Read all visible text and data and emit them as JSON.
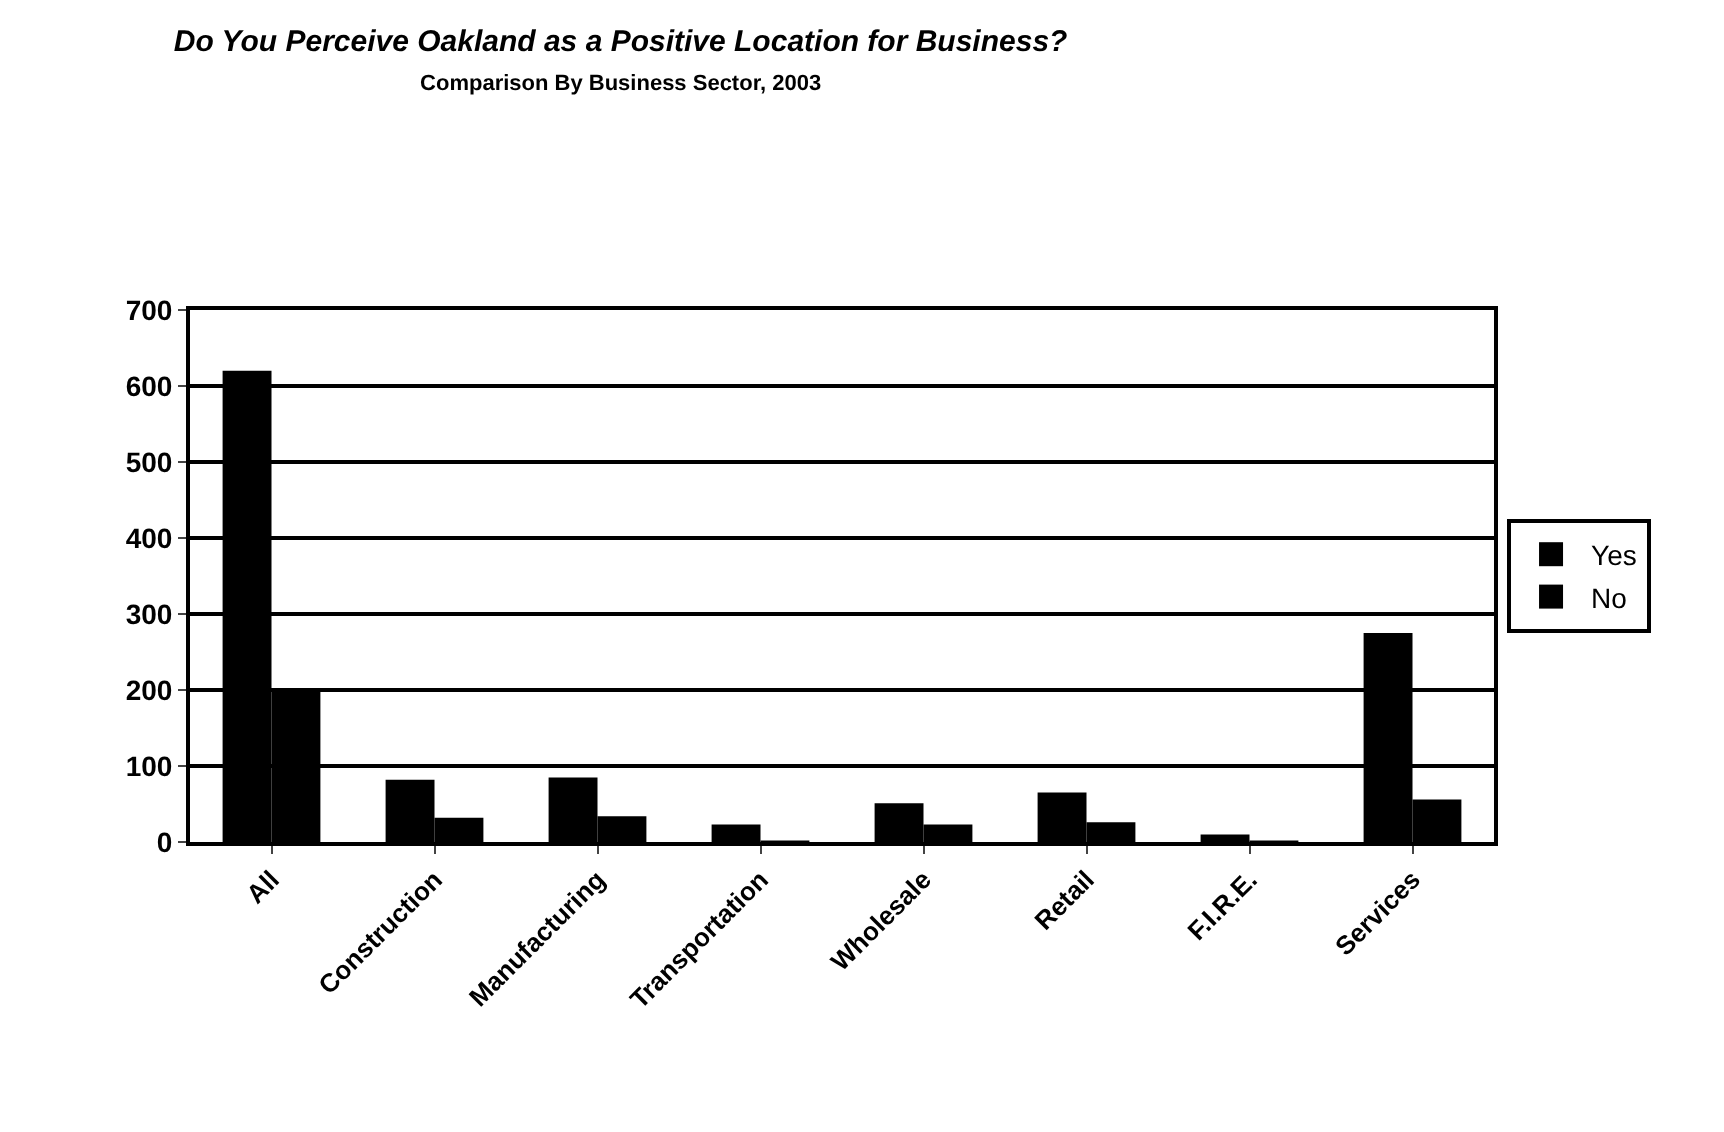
{
  "chart_data": {
    "type": "bar",
    "title": "Do You Perceive Oakland as a Positive Location for Business?",
    "subtitle": "Comparison By Business Sector, 2003",
    "categories": [
      "All",
      "Construction",
      "Manufacturing",
      "Transportation",
      "Wholesale",
      "Retail",
      "F.I.R.E.",
      "Services"
    ],
    "series": [
      {
        "name": "Yes",
        "color": "#000000",
        "values": [
          620,
          82,
          85,
          23,
          51,
          65,
          10,
          275
        ]
      },
      {
        "name": "No",
        "color": "#000000",
        "values": [
          200,
          32,
          34,
          2,
          23,
          26,
          2,
          56
        ]
      }
    ],
    "ylim": [
      0,
      700
    ],
    "yticks": [
      0,
      100,
      200,
      300,
      400,
      500,
      600,
      700
    ],
    "grid": "y",
    "legend": "right"
  }
}
